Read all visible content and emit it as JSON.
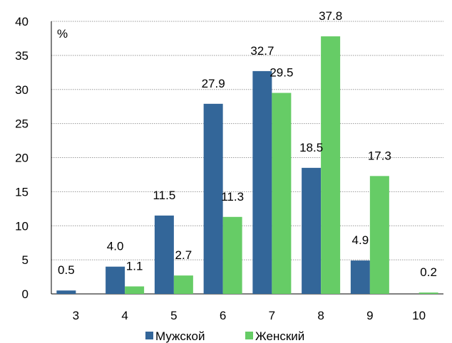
{
  "chart_data": {
    "type": "bar",
    "unit_label": "%",
    "categories": [
      "3",
      "4",
      "5",
      "6",
      "7",
      "8",
      "9",
      "10"
    ],
    "series": [
      {
        "name": "Мужской",
        "color": "#336699",
        "values": [
          0.5,
          4.0,
          11.5,
          27.9,
          32.7,
          18.5,
          4.9,
          null
        ],
        "labels": [
          "0.5",
          "4.0",
          "11.5",
          "27.9",
          "32.7",
          "18.5",
          "4.9",
          ""
        ]
      },
      {
        "name": "Женский",
        "color": "#66CC66",
        "values": [
          null,
          1.1,
          2.7,
          11.3,
          29.5,
          37.8,
          17.3,
          0.2
        ],
        "labels": [
          "",
          "1.1",
          "2.7",
          "11.3",
          "29.5",
          "37.8",
          "17.3",
          "0.2"
        ]
      }
    ],
    "ylim": [
      0,
      40
    ],
    "yticks": [
      "0",
      "5",
      "10",
      "15",
      "20",
      "25",
      "30",
      "35",
      "40"
    ],
    "grid": true,
    "legend_position": "bottom"
  }
}
